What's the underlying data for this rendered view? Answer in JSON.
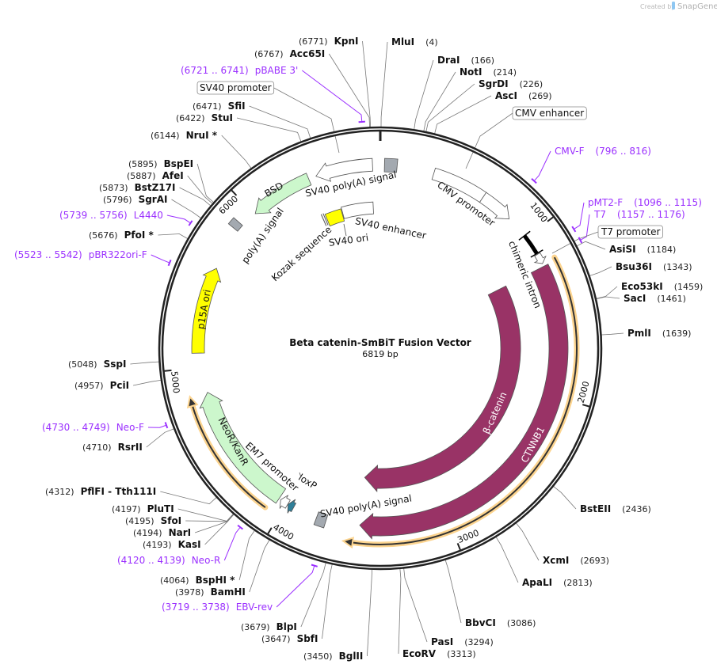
{
  "watermark": {
    "prefix": "Created by",
    "brand": "SnapGene"
  },
  "map": {
    "title": "Beta catenin-SmBiT Fusion Vector",
    "length_label": "6819 bp",
    "length": 6819,
    "ticks": [
      {
        "bp": 1000,
        "label": "1000"
      },
      {
        "bp": 2000,
        "label": "2000"
      },
      {
        "bp": 3000,
        "label": "3000"
      },
      {
        "bp": 4000,
        "label": "4000"
      },
      {
        "bp": 5000,
        "label": "5000"
      },
      {
        "bp": 6000,
        "label": "6000"
      }
    ]
  },
  "colors": {
    "ring": "#222222",
    "primer": "#9b30ff",
    "beta_catenin": "#993366",
    "resistance": "#ccf7cc",
    "ori": "#ffff00",
    "polyA": "#a3a9b0",
    "loxP": "#2f7f99",
    "orf_glow": "#fcd48f"
  },
  "enzymes": [
    {
      "name": "KpnI",
      "pos": "(6771)",
      "bp": 6771
    },
    {
      "name": "Acc65I",
      "pos": "(6767)",
      "bp": 6767
    },
    {
      "name": "SfiI",
      "pos": "(6471)",
      "bp": 6471
    },
    {
      "name": "StuI",
      "pos": "(6422)",
      "bp": 6422
    },
    {
      "name": "NruI *",
      "pos": "(6144)",
      "bp": 6144
    },
    {
      "name": "BspEI",
      "pos": "(5895)",
      "bp": 5895
    },
    {
      "name": "AfeI",
      "pos": "(5887)",
      "bp": 5887
    },
    {
      "name": "BstZ17I",
      "pos": "(5873)",
      "bp": 5873
    },
    {
      "name": "SgrAI",
      "pos": "(5796)",
      "bp": 5796
    },
    {
      "name": "PfoI *",
      "pos": "(5676)",
      "bp": 5676
    },
    {
      "name": "SspI",
      "pos": "(5048)",
      "bp": 5048
    },
    {
      "name": "PciI",
      "pos": "(4957)",
      "bp": 4957
    },
    {
      "name": "RsrII",
      "pos": "(4710)",
      "bp": 4710
    },
    {
      "name": "PflFI  - Tth111I",
      "pos": "(4312)",
      "bp": 4312
    },
    {
      "name": "PluTI",
      "pos": "(4197)",
      "bp": 4197
    },
    {
      "name": "SfoI",
      "pos": "(4195)",
      "bp": 4195
    },
    {
      "name": "NarI",
      "pos": "(4194)",
      "bp": 4194
    },
    {
      "name": "KasI",
      "pos": "(4193)",
      "bp": 4193
    },
    {
      "name": "BspHI *",
      "pos": "(4064)",
      "bp": 4064
    },
    {
      "name": "BamHI",
      "pos": "(3978)",
      "bp": 3978
    },
    {
      "name": "BlpI",
      "pos": "(3679)",
      "bp": 3679
    },
    {
      "name": "SbfI",
      "pos": "(3647)",
      "bp": 3647
    },
    {
      "name": "BglII",
      "pos": "(3450)",
      "bp": 3450
    },
    {
      "name": "MluI",
      "pos": "(4)",
      "bp": 4
    },
    {
      "name": "DraI",
      "pos": "(166)",
      "bp": 166
    },
    {
      "name": "NotI",
      "pos": "(214)",
      "bp": 214
    },
    {
      "name": "SgrDI",
      "pos": "(226)",
      "bp": 226
    },
    {
      "name": "AscI",
      "pos": "(269)",
      "bp": 269
    },
    {
      "name": "AsiSI",
      "pos": "(1184)",
      "bp": 1184
    },
    {
      "name": "Bsu36I",
      "pos": "(1343)",
      "bp": 1343
    },
    {
      "name": "Eco53kI",
      "pos": "(1459)",
      "bp": 1459
    },
    {
      "name": "SacI",
      "pos": "(1461)",
      "bp": 1461
    },
    {
      "name": "PmlI",
      "pos": "(1639)",
      "bp": 1639
    },
    {
      "name": "BstEII",
      "pos": "(2436)",
      "bp": 2436
    },
    {
      "name": "XcmI",
      "pos": "(2693)",
      "bp": 2693
    },
    {
      "name": "ApaLI",
      "pos": "(2813)",
      "bp": 2813
    },
    {
      "name": "BbvCI",
      "pos": "(3086)",
      "bp": 3086
    },
    {
      "name": "PasI",
      "pos": "(3294)",
      "bp": 3294
    },
    {
      "name": "EcoRV",
      "pos": "(3313)",
      "bp": 3313
    }
  ],
  "primers": [
    {
      "name": "pBABE 3'",
      "range": "(6721 .. 6741)",
      "start": 6721,
      "end": 6741
    },
    {
      "name": "L4440",
      "range": "(5739 .. 5756)",
      "start": 5739,
      "end": 5756
    },
    {
      "name": "pBR322ori-F",
      "range": "(5523 .. 5542)",
      "start": 5523,
      "end": 5542
    },
    {
      "name": "Neo-F",
      "range": "(4730 .. 4749)",
      "start": 4730,
      "end": 4749
    },
    {
      "name": "Neo-R",
      "range": "(4120 .. 4139)",
      "start": 4120,
      "end": 4139
    },
    {
      "name": "EBV-rev",
      "range": "(3719 .. 3738)",
      "start": 3719,
      "end": 3738
    },
    {
      "name": "CMV-F",
      "range": "(796 .. 816)",
      "start": 796,
      "end": 816
    },
    {
      "name": "pMT2-F",
      "range": "(1096 .. 1115)",
      "start": 1096,
      "end": 1115
    },
    {
      "name": "T7",
      "range": "(1157 .. 1176)",
      "start": 1157,
      "end": 1176
    }
  ],
  "features": [
    {
      "id": "polyA-top",
      "start": 25,
      "end": 100,
      "dir": 0
    },
    {
      "id": "cmv-enhancer",
      "start": 322,
      "end": 648,
      "dir": 0
    },
    {
      "id": "cmv-promoter",
      "label": "CMV promoter",
      "start": 648,
      "end": 850,
      "dir": 1
    },
    {
      "id": "chimeric-intron",
      "label": "chimeric intron",
      "start": 985,
      "end": 1114,
      "dir": 0
    },
    {
      "id": "t7-promoter",
      "start": 1120,
      "end": 1182,
      "dir": 1
    },
    {
      "id": "ctnnb1",
      "label": "CTNNB1",
      "start": 1200,
      "end": 3535,
      "dir": 1
    },
    {
      "id": "beta-catenin",
      "label": "β-catenin",
      "start": 1205,
      "end": 3540,
      "dir": 1
    },
    {
      "id": "orf-right",
      "start": 1182,
      "end": 3616,
      "dir": 1
    },
    {
      "id": "sv40-polyA-low",
      "label": "SV40 poly(A) signal",
      "start": 3740,
      "end": 3800,
      "dir": 0
    },
    {
      "id": "loxP",
      "label": "loxP",
      "start": 3950,
      "end": 3988,
      "dir": 1
    },
    {
      "id": "em7-promoter",
      "label": "EM7 promoter",
      "start": 3990,
      "end": 4040,
      "dir": 1
    },
    {
      "id": "neoR",
      "label": "NeoR/KanR",
      "start": 4052,
      "end": 4843,
      "dir": 1
    },
    {
      "id": "orf-left",
      "start": 4088,
      "end": 4843,
      "dir": 1
    },
    {
      "id": "p15a-ori",
      "label": "p15A ori",
      "start": 5085,
      "end": 5607,
      "dir": 1
    },
    {
      "id": "polyA-signal",
      "label": "poly(A) signal",
      "start": 5860,
      "end": 5905,
      "dir": 0
    },
    {
      "id": "bsd",
      "label": "BSD",
      "start": 6007,
      "end": 6385,
      "dir": -1
    },
    {
      "id": "kozak",
      "label": "Kozak sequence",
      "start": 6368,
      "end": 6384,
      "dir": 0
    },
    {
      "id": "sv40-ori",
      "label": "SV40 ori",
      "start": 6395,
      "end": 6520,
      "dir": 0
    },
    {
      "id": "sv40-enhancer",
      "label": "SV40 enhancer",
      "start": 6525,
      "end": 6765,
      "dir": 0
    },
    {
      "id": "sv40-polyA-top",
      "label": "SV40 poly(A) signal",
      "start": 6431,
      "end": 6773,
      "dir": -1
    }
  ],
  "boxed_labels": [
    {
      "text": "SV40 promoter"
    },
    {
      "text": "CMV enhancer"
    },
    {
      "text": "T7 promoter"
    }
  ]
}
